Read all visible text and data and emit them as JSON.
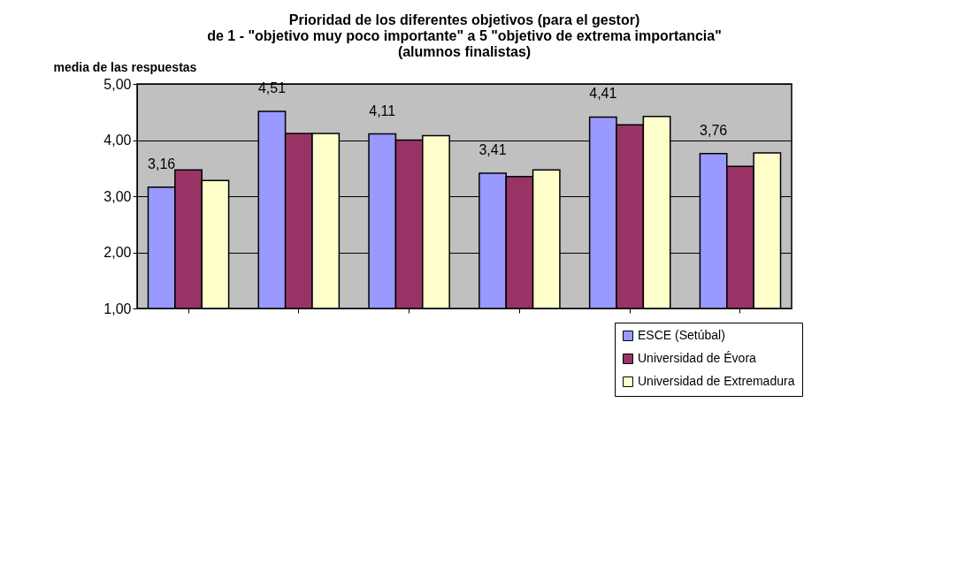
{
  "chart_data": {
    "type": "bar",
    "title": "Prioridad de los diferentes objetivos (para el gestor)\nde 1 - \"objetivo muy poco importante\" a 5 \"objetivo de extrema importancia\"\n(alumnos finalistas)",
    "ylabel": "media de las respuestas",
    "categories": [
      null,
      null,
      null,
      null,
      null,
      null
    ],
    "series": [
      {
        "name": "ESCE (Setúbal)",
        "color": "#9999ff",
        "values": [
          3.16,
          4.51,
          4.11,
          3.41,
          4.41,
          3.76
        ],
        "value_labels": [
          "3,16",
          "4,51",
          "4,11",
          "3,41",
          "4,41",
          "3,76"
        ]
      },
      {
        "name": "Universidad de Évora",
        "color": "#993366",
        "values": [
          3.47,
          4.12,
          4.0,
          3.35,
          4.27,
          3.53
        ]
      },
      {
        "name": "Universidad de Extremadura",
        "color": "#ffffcc",
        "values": [
          3.28,
          4.12,
          4.08,
          3.47,
          4.42,
          3.77
        ]
      }
    ],
    "ylim": [
      1,
      5
    ],
    "yticks": [
      {
        "value": 1,
        "label": "1,00"
      },
      {
        "value": 2,
        "label": "2,00"
      },
      {
        "value": 3,
        "label": "3,00"
      },
      {
        "value": 4,
        "label": "4,00"
      },
      {
        "value": 5,
        "label": "5,00"
      }
    ],
    "grid": "y",
    "legend": "bottom right",
    "tick_labels": "y"
  }
}
